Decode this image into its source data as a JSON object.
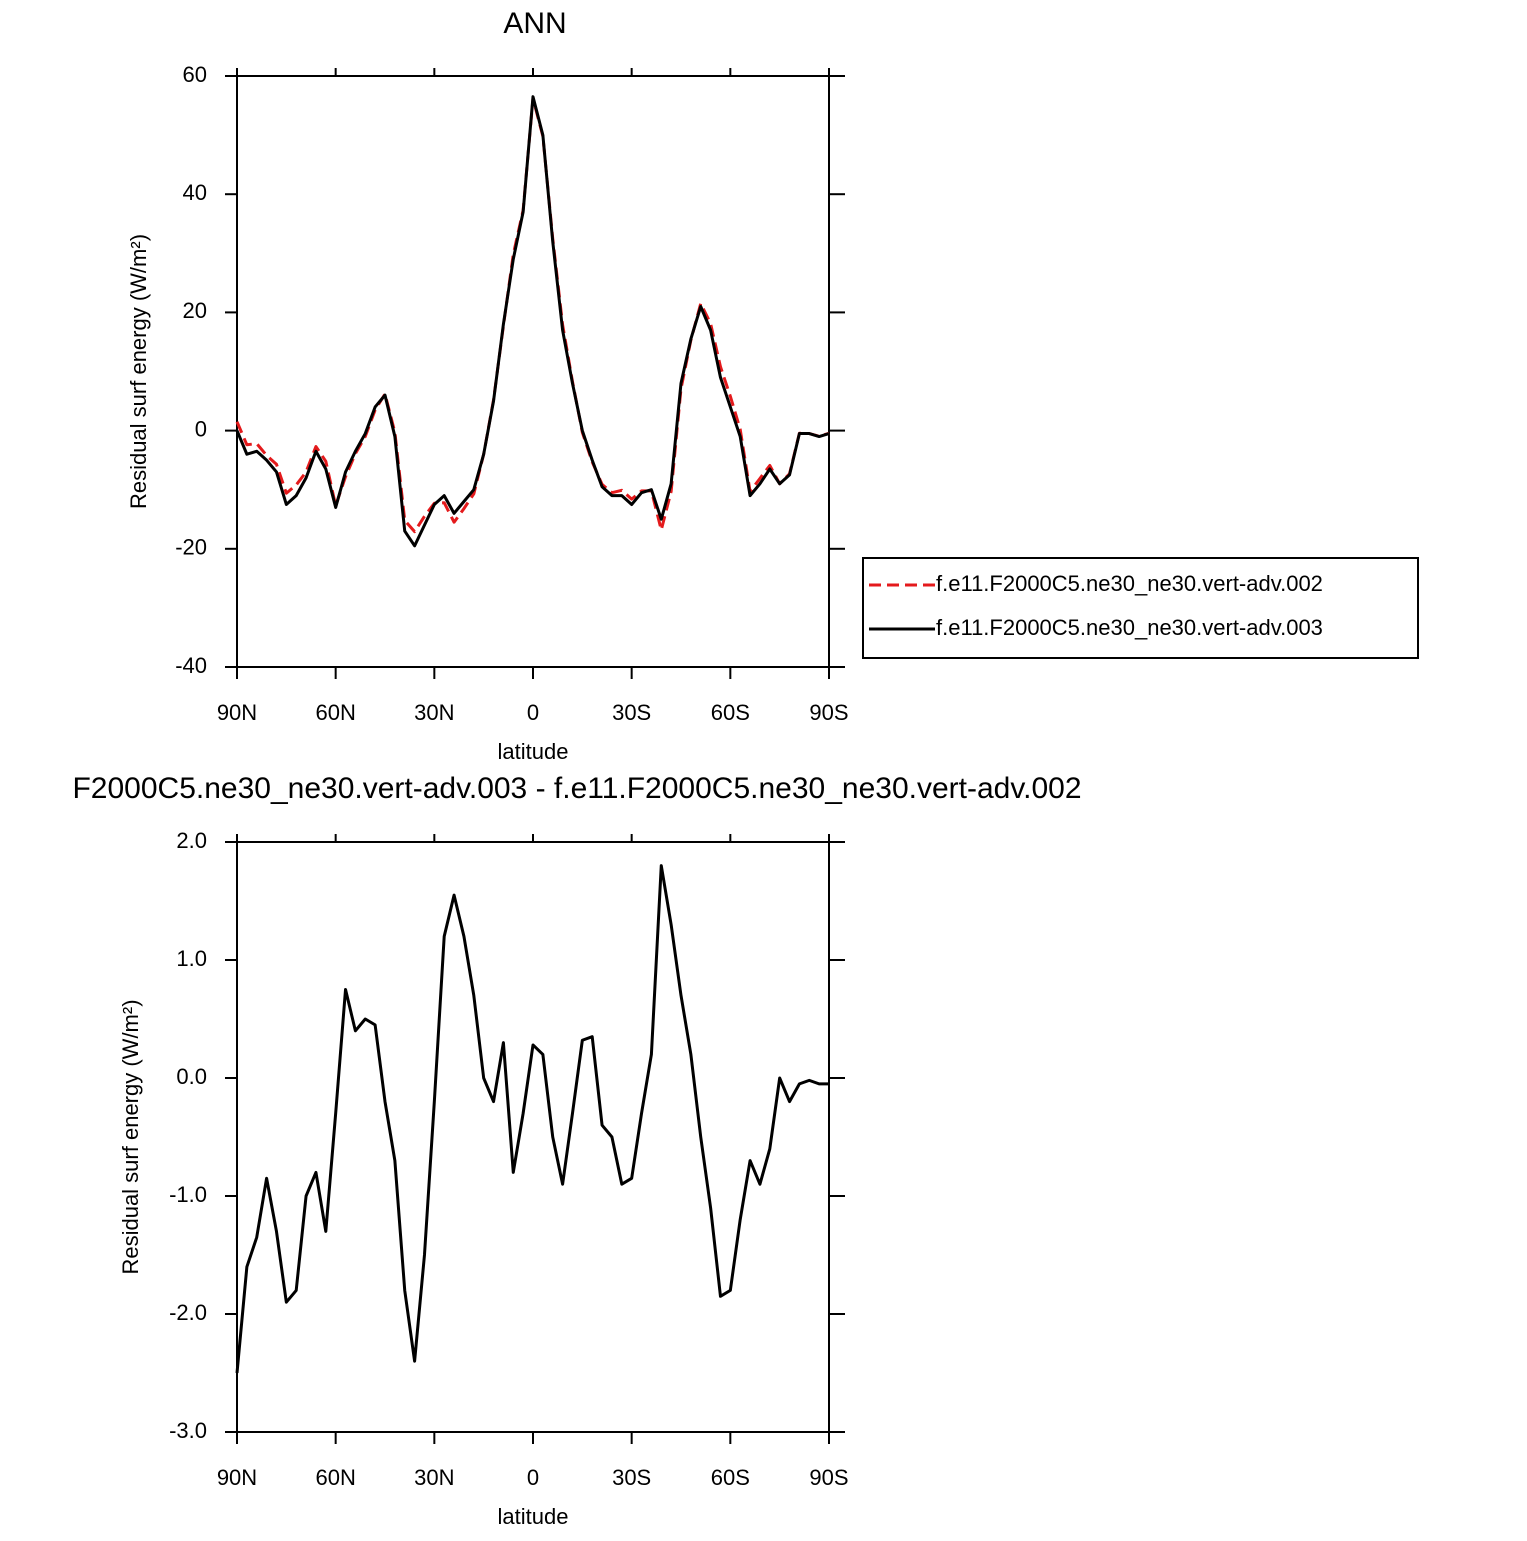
{
  "chart_data": [
    {
      "type": "line",
      "title": "ANN",
      "x_label": "latitude",
      "y_label": "Residual surf energy (W/m²)",
      "x": [
        90,
        87,
        84,
        81,
        78,
        75,
        72,
        69,
        66,
        63,
        60,
        57,
        54,
        51,
        48,
        45,
        42,
        39,
        36,
        33,
        30,
        27,
        24,
        21,
        18,
        15,
        12,
        9,
        6,
        3,
        0,
        -3,
        -6,
        -9,
        -12,
        -15,
        -18,
        -21,
        -24,
        -27,
        -30,
        -33,
        -36,
        -39,
        -42,
        -45,
        -48,
        -51,
        -54,
        -57,
        -60,
        -63,
        -66,
        -69,
        -72,
        -75,
        -78,
        -81,
        -84,
        -87,
        -90
      ],
      "xlim": [
        90,
        -90
      ],
      "xticks": [
        {
          "value": 90,
          "label": "90N"
        },
        {
          "value": 60,
          "label": "60N"
        },
        {
          "value": 30,
          "label": "30N"
        },
        0,
        {
          "value": -30,
          "label": "30S"
        },
        {
          "value": -60,
          "label": "60S"
        },
        {
          "value": -90,
          "label": "90S"
        }
      ],
      "ylim": [
        -40,
        60
      ],
      "yticks": [
        60,
        40,
        20,
        0,
        -20,
        -40
      ],
      "legend": "right",
      "series": [
        {
          "name": "f.e11.F2000C5.ne30_ne30.vert-adv.002",
          "color": "#e41a1c",
          "line_style": "dashed",
          "values": [
            1.5,
            -2.4,
            -2.2,
            -4.2,
            -5.7,
            -10.6,
            -9.2,
            -7,
            -2.7,
            -5.2,
            -12.7,
            -7.8,
            -3.9,
            -1,
            3.5,
            6.2,
            -0.3,
            -15.2,
            -17.1,
            -14.5,
            -12.3,
            -12.2,
            -15.5,
            -13.2,
            -10.7,
            -4,
            5.2,
            17.7,
            29.8,
            37.3,
            56.2,
            49.8,
            32.5,
            17.9,
            8.3,
            -0.3,
            -5.3,
            -9.1,
            -10.5,
            -10.1,
            -11.6,
            -10.2,
            -10.2,
            -16.8,
            -10.3,
            7.1,
            15.3,
            21.5,
            18.1,
            10.8,
            5.8,
            0.2,
            -10.3,
            -8.1,
            -5.9,
            -9,
            -7.3,
            -0.45,
            -0.5,
            -0.95,
            -0.45
          ]
        },
        {
          "name": "f.e11.F2000C5.ne30_ne30.vert-adv.003",
          "color": "#000000",
          "line_style": "solid",
          "values": [
            0,
            -4,
            -3.5,
            -5,
            -7,
            -12.5,
            -11,
            -8,
            -3.5,
            -6.5,
            -13,
            -7,
            -3.5,
            -0.5,
            4,
            6,
            -1,
            -17,
            -19.5,
            -16,
            -12.5,
            -11,
            -14,
            -12,
            -10,
            -4,
            5,
            18,
            29,
            37,
            56.5,
            50,
            32,
            17,
            8,
            0,
            -5,
            -9.5,
            -11,
            -11,
            -12.5,
            -10.5,
            -10,
            -15,
            -9,
            8,
            15.5,
            21,
            17,
            9,
            4,
            -1,
            -11,
            -9,
            -6.5,
            -9,
            -7.5,
            -0.5,
            -0.5,
            -1,
            -0.5
          ]
        }
      ]
    },
    {
      "type": "line",
      "title": "F2000C5.ne30_ne30.vert-adv.003 - f.e11.F2000C5.ne30_ne30.vert-adv.002",
      "x_label": "latitude",
      "y_label": "Residual surf energy (W/m²)",
      "x": [
        90,
        87,
        84,
        81,
        78,
        75,
        72,
        69,
        66,
        63,
        60,
        57,
        54,
        51,
        48,
        45,
        42,
        39,
        36,
        33,
        30,
        27,
        24,
        21,
        18,
        15,
        12,
        9,
        6,
        3,
        0,
        -3,
        -6,
        -9,
        -12,
        -15,
        -18,
        -21,
        -24,
        -27,
        -30,
        -33,
        -36,
        -39,
        -42,
        -45,
        -48,
        -51,
        -54,
        -57,
        -60,
        -63,
        -66,
        -69,
        -72,
        -75,
        -78,
        -81,
        -84,
        -87,
        -90
      ],
      "xlim": [
        90,
        -90
      ],
      "xticks": [
        {
          "value": 90,
          "label": "90N"
        },
        {
          "value": 60,
          "label": "60N"
        },
        {
          "value": 30,
          "label": "30N"
        },
        0,
        {
          "value": -30,
          "label": "30S"
        },
        {
          "value": -60,
          "label": "60S"
        },
        {
          "value": -90,
          "label": "90S"
        }
      ],
      "ylim": [
        -3,
        2
      ],
      "yticks": [
        {
          "value": 2,
          "label": "2.0"
        },
        {
          "value": 1,
          "label": "1.0"
        },
        {
          "value": 0,
          "label": "0.0"
        },
        {
          "value": -1,
          "label": "-1.0"
        },
        {
          "value": -2,
          "label": "-2.0"
        },
        {
          "value": -3,
          "label": "-3.0"
        }
      ],
      "series": [
        {
          "color": "#000000",
          "line_style": "solid",
          "values": [
            -2.5,
            -1.6,
            -1.35,
            -0.85,
            -1.3,
            -1.9,
            -1.8,
            -1.0,
            -0.8,
            -1.3,
            -0.3,
            0.75,
            0.4,
            0.5,
            0.45,
            -0.2,
            -0.7,
            -1.8,
            -2.4,
            -1.5,
            -0.2,
            1.2,
            1.55,
            1.2,
            0.7,
            0.0,
            -0.2,
            0.3,
            -0.8,
            -0.3,
            0.28,
            0.2,
            -0.5,
            -0.9,
            -0.3,
            0.32,
            0.35,
            -0.4,
            -0.5,
            -0.9,
            -0.85,
            -0.3,
            0.2,
            1.8,
            1.3,
            0.7,
            0.2,
            -0.5,
            -1.1,
            -1.85,
            -1.8,
            -1.2,
            -0.7,
            -0.9,
            -0.6,
            0.0,
            -0.2,
            -0.05,
            -0.02,
            -0.05,
            -0.05
          ]
        }
      ]
    }
  ]
}
